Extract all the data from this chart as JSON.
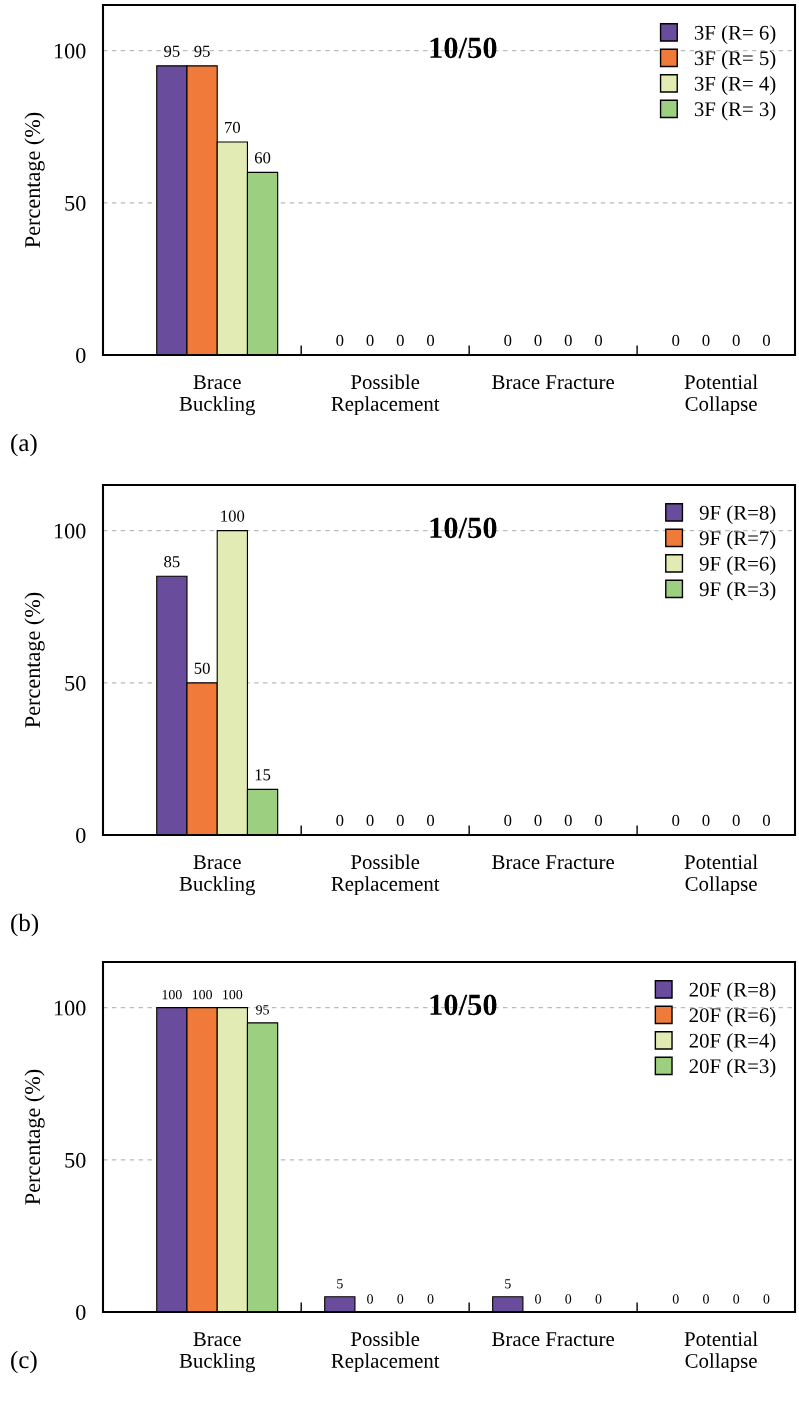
{
  "chart_data": [
    {
      "type": "bar",
      "title": "10/50",
      "ylabel": "Percentage (%)",
      "annotations": [
        "(a)"
      ],
      "categories": [
        "Brace\nBuckling",
        "Possible\nReplacement",
        "Brace Fracture",
        "Potential\nCollapse"
      ],
      "ylim": [
        0,
        115
      ],
      "yticks": [
        0,
        50,
        100
      ],
      "grid": "y",
      "legend": "top right",
      "data_labels": true,
      "series": [
        {
          "name": "3F (R= 6)",
          "color": "#6a4c9c",
          "values": [
            95,
            0,
            0,
            0
          ]
        },
        {
          "name": "3F (R= 5)",
          "color": "#f07a3a",
          "values": [
            95,
            0,
            0,
            0
          ]
        },
        {
          "name": "3F (R= 4)",
          "color": "#e2ebb4",
          "values": [
            70,
            0,
            0,
            0
          ]
        },
        {
          "name": "3F (R= 3)",
          "color": "#9ccf80",
          "values": [
            60,
            0,
            0,
            0
          ]
        }
      ]
    },
    {
      "type": "bar",
      "title": "10/50",
      "ylabel": "Percentage (%)",
      "annotations": [
        "(b)"
      ],
      "categories": [
        "Brace\nBuckling",
        "Possible\nReplacement",
        "Brace Fracture",
        "Potential\nCollapse"
      ],
      "ylim": [
        0,
        115
      ],
      "yticks": [
        0,
        50,
        100
      ],
      "grid": "y",
      "legend": "top right",
      "data_labels": true,
      "series": [
        {
          "name": "9F (R=8)",
          "color": "#6a4c9c",
          "values": [
            85,
            0,
            0,
            0
          ]
        },
        {
          "name": "9F (R=7)",
          "color": "#f07a3a",
          "values": [
            50,
            0,
            0,
            0
          ]
        },
        {
          "name": "9F (R=6)",
          "color": "#e2ebb4",
          "values": [
            100,
            0,
            0,
            0
          ]
        },
        {
          "name": "9F (R=3)",
          "color": "#9ccf80",
          "values": [
            15,
            0,
            0,
            0
          ]
        }
      ]
    },
    {
      "type": "bar",
      "title": "10/50",
      "ylabel": "Percentage (%)",
      "annotations": [
        "(c)"
      ],
      "categories": [
        "Brace\nBuckling",
        "Possible\nReplacement",
        "Brace Fracture",
        "Potential\nCollapse"
      ],
      "ylim": [
        0,
        115
      ],
      "yticks": [
        0,
        50,
        100
      ],
      "grid": "y",
      "legend": "top right",
      "data_labels": true,
      "series": [
        {
          "name": "20F (R=8)",
          "color": "#6a4c9c",
          "values": [
            100,
            5,
            5,
            0
          ]
        },
        {
          "name": "20F (R=6)",
          "color": "#f07a3a",
          "values": [
            100,
            0,
            0,
            0
          ]
        },
        {
          "name": "20F (R=4)",
          "color": "#e2ebb4",
          "values": [
            100,
            0,
            0,
            0
          ]
        },
        {
          "name": "20F (R=3)",
          "color": "#9ccf80",
          "values": [
            95,
            0,
            0,
            0
          ]
        }
      ]
    }
  ]
}
